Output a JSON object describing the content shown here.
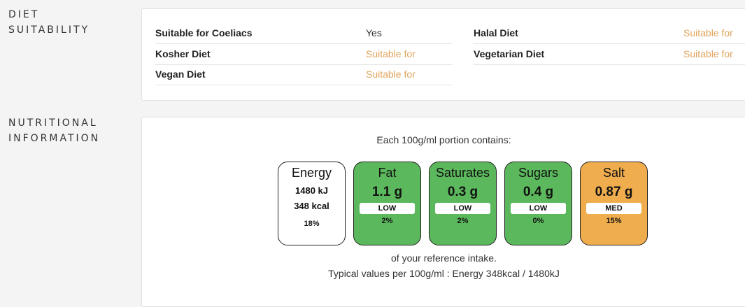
{
  "diet": {
    "title_line1": "DIET",
    "title_line2": "SUITABILITY",
    "rows": [
      {
        "label": "Suitable for Coeliacs",
        "value": "Yes"
      },
      {
        "label": "Kosher Diet",
        "value": "Suitable for"
      },
      {
        "label": "Vegan Diet",
        "value": "Suitable for"
      },
      {
        "label": "Halal Diet",
        "value": "Suitable for"
      },
      {
        "label": "Vegetarian Diet",
        "value": "Suitable for"
      }
    ]
  },
  "nutrition": {
    "title_line1": "NUTRITIONAL",
    "title_line2": "INFORMATION",
    "intro": "Each 100g/ml portion contains:",
    "energy": {
      "name": "Energy",
      "kj": "1480 kJ",
      "kcal": "348 kcal",
      "pct": "18%"
    },
    "items": [
      {
        "name": "Fat",
        "amount": "1.1 g",
        "level": "LOW",
        "pct": "2%"
      },
      {
        "name": "Saturates",
        "amount": "0.3 g",
        "level": "LOW",
        "pct": "2%"
      },
      {
        "name": "Sugars",
        "amount": "0.4 g",
        "level": "LOW",
        "pct": "0%"
      },
      {
        "name": "Salt",
        "amount": "0.87 g",
        "level": "MED",
        "pct": "15%"
      }
    ],
    "reference": "of your reference intake.",
    "typical": "Typical values per 100g/ml : Energy 348kcal / 1480kJ"
  },
  "colors": {
    "low": "#5cb85c",
    "med": "#f0ad4e",
    "suitable_text": "#e0a35c"
  }
}
